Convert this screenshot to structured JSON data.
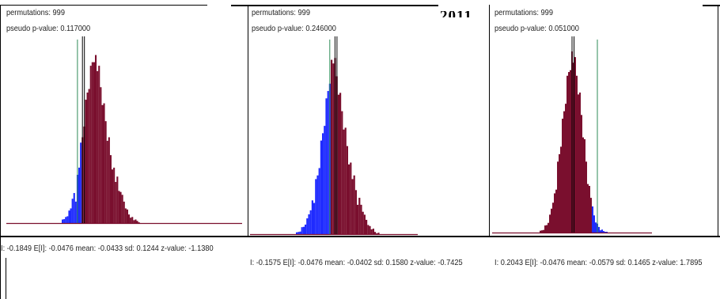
{
  "page": {
    "year_fragment": "2011"
  },
  "colors": {
    "bar_high": "#7a0f2e",
    "bar_low": "#1f2bff",
    "expected_line": "#2e8b57",
    "observed_line": "#000000",
    "baseline": "#7a0f2e"
  },
  "chart_data": [
    {
      "type": "bar",
      "title": "",
      "permutations_label": "permutations: 999",
      "pvalue_label": "pseudo p-value: 0.117000",
      "stats_line": "I: -0.1849  E[I]: -0.0476  mean: -0.0433  sd: 0.1244  z-value: -1.1380",
      "stats": {
        "I": -0.1849,
        "E_I": -0.0476,
        "mean": -0.0433,
        "sd": 0.1244,
        "z_value": -1.138,
        "permutations": 999,
        "pseudo_p_value": 0.117
      },
      "x_range": [
        -0.6,
        0.6
      ],
      "description_values": "relative bar heights of permutation histogram (0-1 scale)",
      "values": [
        0.02,
        0.03,
        0.05,
        0.04,
        0.08,
        0.1,
        0.14,
        0.18,
        0.22,
        0.3,
        0.38,
        0.45,
        0.52,
        0.62,
        0.7,
        0.78,
        0.84,
        0.9,
        0.96,
        1.0,
        0.97,
        0.92,
        0.88,
        0.8,
        0.74,
        0.68,
        0.62,
        0.55,
        0.5,
        0.44,
        0.4,
        0.34,
        0.3,
        0.26,
        0.22,
        0.19,
        0.16,
        0.13,
        0.1,
        0.08,
        0.06,
        0.05,
        0.04,
        0.03,
        0.02,
        0.02,
        0.01
      ],
      "low_bars": 12
    },
    {
      "type": "bar",
      "title": "",
      "permutations_label": "permutations: 999",
      "pvalue_label": "pseudo p-value: 0.246000",
      "stats_line": "I: -0.1575  E[I]: -0.0476  mean: -0.0402  sd: 0.1580  z-value: -0.7425",
      "stats": {
        "I": -0.1575,
        "E_I": -0.0476,
        "mean": -0.0402,
        "sd": 0.158,
        "z_value": -0.7425,
        "permutations": 999,
        "pseudo_p_value": 0.246
      },
      "x_range": [
        -0.6,
        0.6
      ],
      "values": [
        0.01,
        0.02,
        0.03,
        0.04,
        0.05,
        0.07,
        0.09,
        0.12,
        0.15,
        0.19,
        0.24,
        0.3,
        0.36,
        0.44,
        0.52,
        0.6,
        0.68,
        0.76,
        0.84,
        0.92,
        0.98,
        1.0,
        0.96,
        0.9,
        0.84,
        0.78,
        0.72,
        0.66,
        0.6,
        0.54,
        0.48,
        0.42,
        0.37,
        0.32,
        0.28,
        0.24,
        0.2,
        0.17,
        0.14,
        0.11,
        0.09,
        0.07,
        0.05,
        0.04,
        0.03,
        0.02,
        0.02,
        0.01
      ],
      "low_bars": 20
    },
    {
      "type": "bar",
      "title": "",
      "permutations_label": "permutations: 999",
      "pvalue_label": "pseudo p-value: 0.051000",
      "stats_line": "I: 0.2043  E[I]: -0.0476  mean: -0.0579  sd: 0.1465  z-value: 1.7895",
      "stats": {
        "I": 0.2043,
        "E_I": -0.0476,
        "mean": -0.0579,
        "sd": 0.1465,
        "z_value": 1.7895,
        "permutations": 999,
        "pseudo_p_value": 0.051
      },
      "x_range": [
        -0.6,
        0.6
      ],
      "values": [
        0.01,
        0.02,
        0.03,
        0.04,
        0.05,
        0.07,
        0.1,
        0.14,
        0.18,
        0.24,
        0.3,
        0.38,
        0.46,
        0.54,
        0.62,
        0.7,
        0.78,
        0.86,
        0.92,
        0.97,
        1.0,
        0.98,
        0.94,
        0.88,
        0.82,
        0.76,
        0.68,
        0.6,
        0.52,
        0.44,
        0.36,
        0.28,
        0.2,
        0.14,
        0.1,
        0.07,
        0.05,
        0.04,
        0.03,
        0.02,
        0.02,
        0.01,
        0.01
      ],
      "low_bars": 33
    }
  ]
}
